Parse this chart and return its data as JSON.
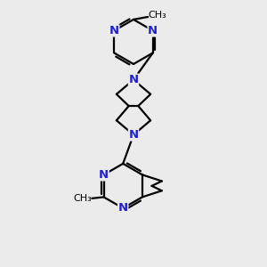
{
  "background_color": "#ebebeb",
  "bond_color": "#000000",
  "atom_color": "#2222cc",
  "bond_width": 1.6,
  "figsize": [
    3.0,
    3.0
  ],
  "dpi": 100,
  "xlim": [
    0,
    10
  ],
  "ylim": [
    0,
    10
  ],
  "font_size_atom": 9.5,
  "font_size_methyl": 8.0
}
